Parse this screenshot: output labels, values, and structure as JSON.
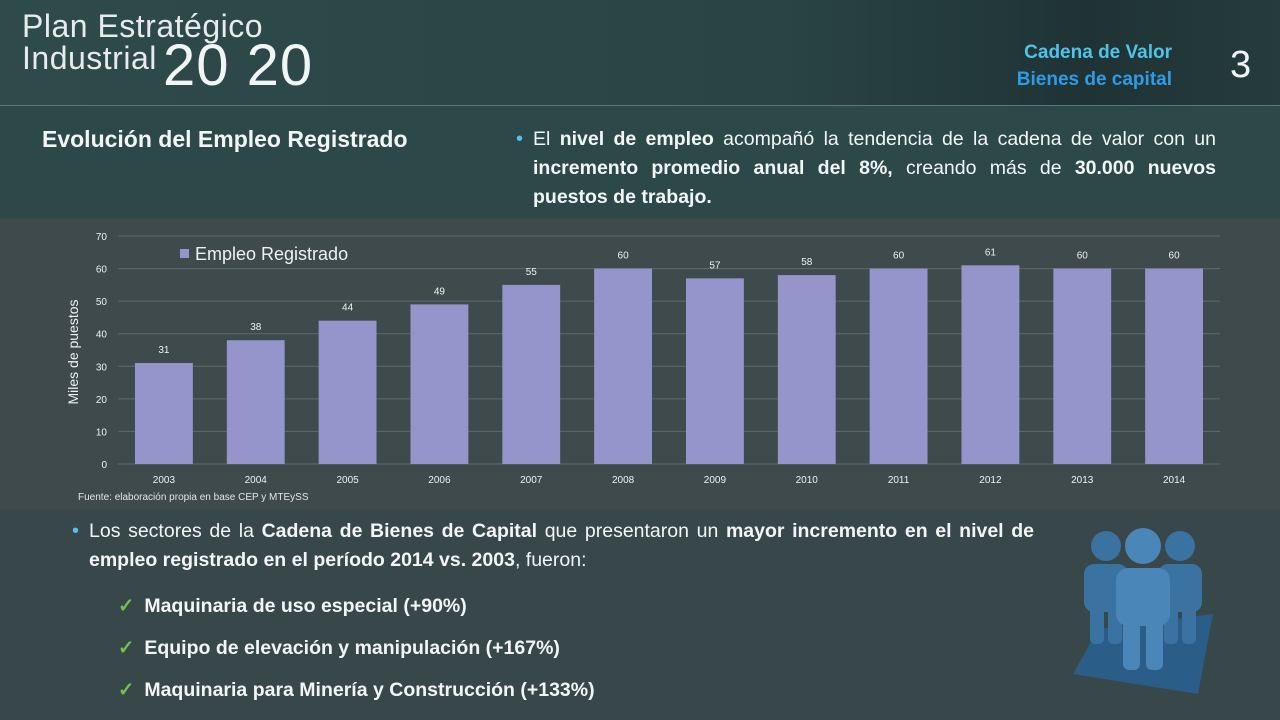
{
  "header": {
    "logo_line1": "Plan Estratégico",
    "logo_line2": "Industrial",
    "logo_big": "20 20",
    "crumb1": "Cadena de Valor",
    "crumb2": "Bienes de capital",
    "page_number": "3"
  },
  "section_title": "Evolución del Empleo Registrado",
  "top_bullet": {
    "p1": "El ",
    "b1": "nivel de empleo",
    "p2": " acompañó la tendencia de la cadena de valor con un ",
    "b2": "incremento promedio anual del 8%,",
    "p3": " creando más de ",
    "b3": "30.000 nuevos puestos de trabajo."
  },
  "chart_data": {
    "type": "bar",
    "categories": [
      "2003",
      "2004",
      "2005",
      "2006",
      "2007",
      "2008",
      "2009",
      "2010",
      "2011",
      "2012",
      "2013",
      "2014"
    ],
    "series": [
      {
        "name": "Empleo Registrado",
        "values": [
          31,
          38,
          44,
          49,
          55,
          60,
          57,
          58,
          60,
          61,
          60,
          60
        ],
        "color": "#9595cc"
      }
    ],
    "ylabel": "Miles de puestos",
    "ylim": [
      0,
      70
    ],
    "yticks": [
      0,
      10,
      20,
      30,
      40,
      50,
      60,
      70
    ],
    "grid": true,
    "legend_position": "top-left",
    "source": "Fuente: elaboración propia en base CEP y MTEySS"
  },
  "bottom_bullet": {
    "p1": "Los sectores de la ",
    "b1": "Cadena de Bienes de Capital",
    "p2": " que presentaron un ",
    "b2": "mayor incremento en el nivel de empleo registrado en el período 2014 vs. 2003",
    "p3": ", fueron:"
  },
  "checks": [
    "Maquinaria de uso especial (+90%)",
    "Equipo de elevación y manipulación (+167%)",
    "Maquinaria para Minería y Construcción (+133%)"
  ],
  "icon": "people-group-icon",
  "colors": {
    "accent_cyan": "#4fc3e8",
    "accent_blue": "#2e9be6",
    "bar": "#9595cc",
    "check": "#6fc24a",
    "icon": "#2f6a9a"
  }
}
